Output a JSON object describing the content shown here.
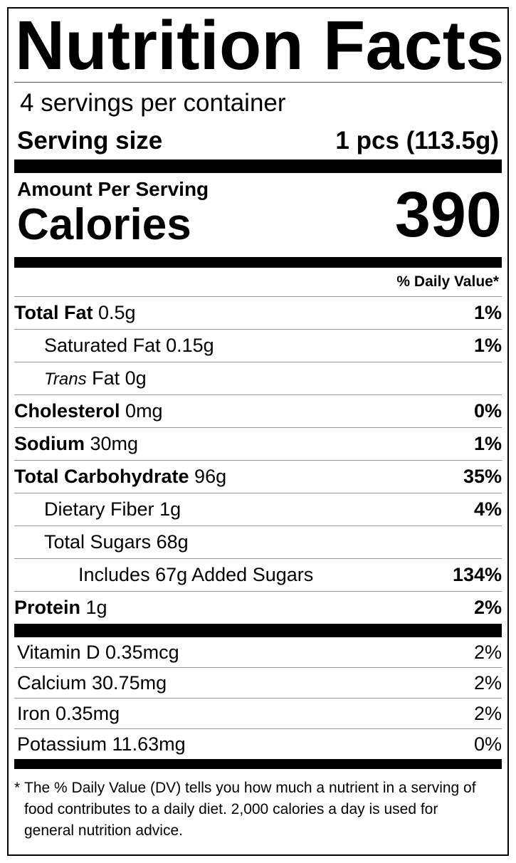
{
  "title": "Nutrition Facts",
  "servings_per_container": "4 servings per container",
  "serving_size": {
    "label": "Serving size",
    "value": "1 pcs (113.5g)"
  },
  "amount_per_serving": "Amount Per Serving",
  "calories": {
    "label": "Calories",
    "value": "390"
  },
  "daily_value_header": "% Daily Value*",
  "nutrients": [
    {
      "name": "Total Fat",
      "amount": "0.5g",
      "dv": "1%"
    },
    {
      "name": "Saturated Fat",
      "amount": "0.15g",
      "dv": "1%"
    },
    {
      "name": "Trans",
      "suffix": "Fat",
      "amount": "0g",
      "dv": ""
    },
    {
      "name": "Cholesterol",
      "amount": "0mg",
      "dv": "0%"
    },
    {
      "name": "Sodium",
      "amount": "30mg",
      "dv": "1%"
    },
    {
      "name": "Total Carbohydrate",
      "amount": "96g",
      "dv": "35%"
    },
    {
      "name": "Dietary Fiber",
      "amount": "1g",
      "dv": "4%"
    },
    {
      "name": "Total Sugars",
      "amount": "68g",
      "dv": ""
    },
    {
      "name": "Includes 67g Added Sugars",
      "amount": "",
      "dv": "134%"
    },
    {
      "name": "Protein",
      "amount": "1g",
      "dv": "2%"
    }
  ],
  "vitamins": [
    {
      "name": "Vitamin D 0.35mcg",
      "dv": "2%"
    },
    {
      "name": "Calcium 30.75mg",
      "dv": "2%"
    },
    {
      "name": "Iron 0.35mg",
      "dv": "2%"
    },
    {
      "name": "Potassium 11.63mg",
      "dv": "0%"
    }
  ],
  "footnote": {
    "star": "*",
    "text": "The % Daily Value (DV) tells you how much a nutrient in a serving of food contributes to a daily diet. 2,000 calories a day is used for general nutrition advice."
  }
}
